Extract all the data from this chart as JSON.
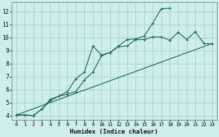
{
  "bg_color": "#ceeee8",
  "grid_color": "#aacccc",
  "line_color": "#1a6b5e",
  "xlabel": "Humidex (Indice chaleur)",
  "xlim": [
    -0.5,
    23.5
  ],
  "ylim": [
    3.7,
    12.7
  ],
  "xticks": [
    0,
    1,
    2,
    3,
    4,
    5,
    6,
    7,
    8,
    9,
    10,
    11,
    12,
    13,
    14,
    15,
    16,
    17,
    18,
    19,
    20,
    21,
    22,
    23
  ],
  "yticks": [
    4,
    5,
    6,
    7,
    8,
    9,
    10,
    11,
    12
  ],
  "line1_x": [
    0,
    1,
    2,
    3,
    4,
    5,
    6,
    7,
    8,
    9,
    10,
    11,
    12,
    13,
    14,
    15,
    16,
    17,
    18
  ],
  "line1_y": [
    4.05,
    4.05,
    4.0,
    4.5,
    5.25,
    5.5,
    5.85,
    6.85,
    7.35,
    9.35,
    8.65,
    8.85,
    9.35,
    9.85,
    9.9,
    10.1,
    11.1,
    12.2,
    12.25
  ],
  "line2_x": [
    0,
    23
  ],
  "line2_y": [
    4.05,
    9.55
  ],
  "line3_x": [
    0,
    1,
    2,
    3,
    4,
    5,
    6,
    7,
    8,
    9,
    10,
    11,
    12,
    13,
    14,
    15,
    16,
    17,
    18,
    19,
    20,
    21,
    22,
    23
  ],
  "line3_y": [
    4.05,
    4.05,
    4.0,
    4.5,
    5.15,
    5.5,
    5.65,
    5.85,
    6.75,
    7.35,
    8.6,
    8.85,
    9.3,
    9.35,
    9.85,
    9.85,
    10.05,
    10.05,
    9.8,
    10.4,
    9.85,
    10.45,
    9.55,
    9.5
  ]
}
